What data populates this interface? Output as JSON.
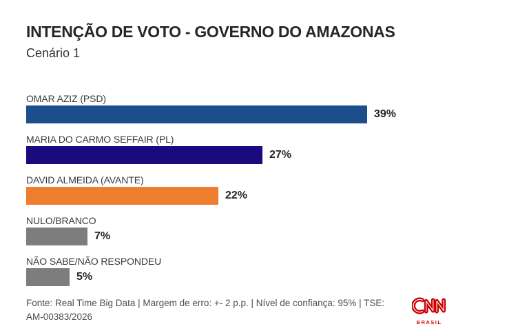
{
  "header": {
    "title": "INTENÇÃO DE VOTO - GOVERNO DO AMAZONAS",
    "subtitle": "Cenário 1"
  },
  "chart_data": {
    "type": "bar",
    "orientation": "horizontal",
    "title": "INTENÇÃO DE VOTO - GOVERNO DO AMAZONAS",
    "subtitle": "Cenário 1",
    "categories": [
      "OMAR AZIZ (PSD)",
      "MARIA DO CARMO SEFFAIR (PL)",
      "DAVID ALMEIDA (AVANTE)",
      "NULO/BRANCO",
      "NÃO SABE/NÃO RESPONDEU"
    ],
    "values": [
      39,
      27,
      22,
      7,
      5
    ],
    "value_labels": [
      "39%",
      "27%",
      "22%",
      "7%",
      "5%"
    ],
    "bar_colors": [
      "#1d4e8c",
      "#190b7d",
      "#ee7d2e",
      "#7d7d7d",
      "#7d7d7d"
    ],
    "xlim": [
      0,
      39
    ],
    "grid": false,
    "legend": "none",
    "value_label_position": "right-of-bar"
  },
  "footer": {
    "source_text": "Fonte: Real Time Big Data | Margem de erro: +- 2 p.p. | Nível de confiança: 95% | TSE: AM-00383/2026",
    "logo": {
      "name": "CNN Brasil",
      "text": "CNN",
      "subtext": "BRASIL",
      "color": "#cc0000"
    }
  }
}
